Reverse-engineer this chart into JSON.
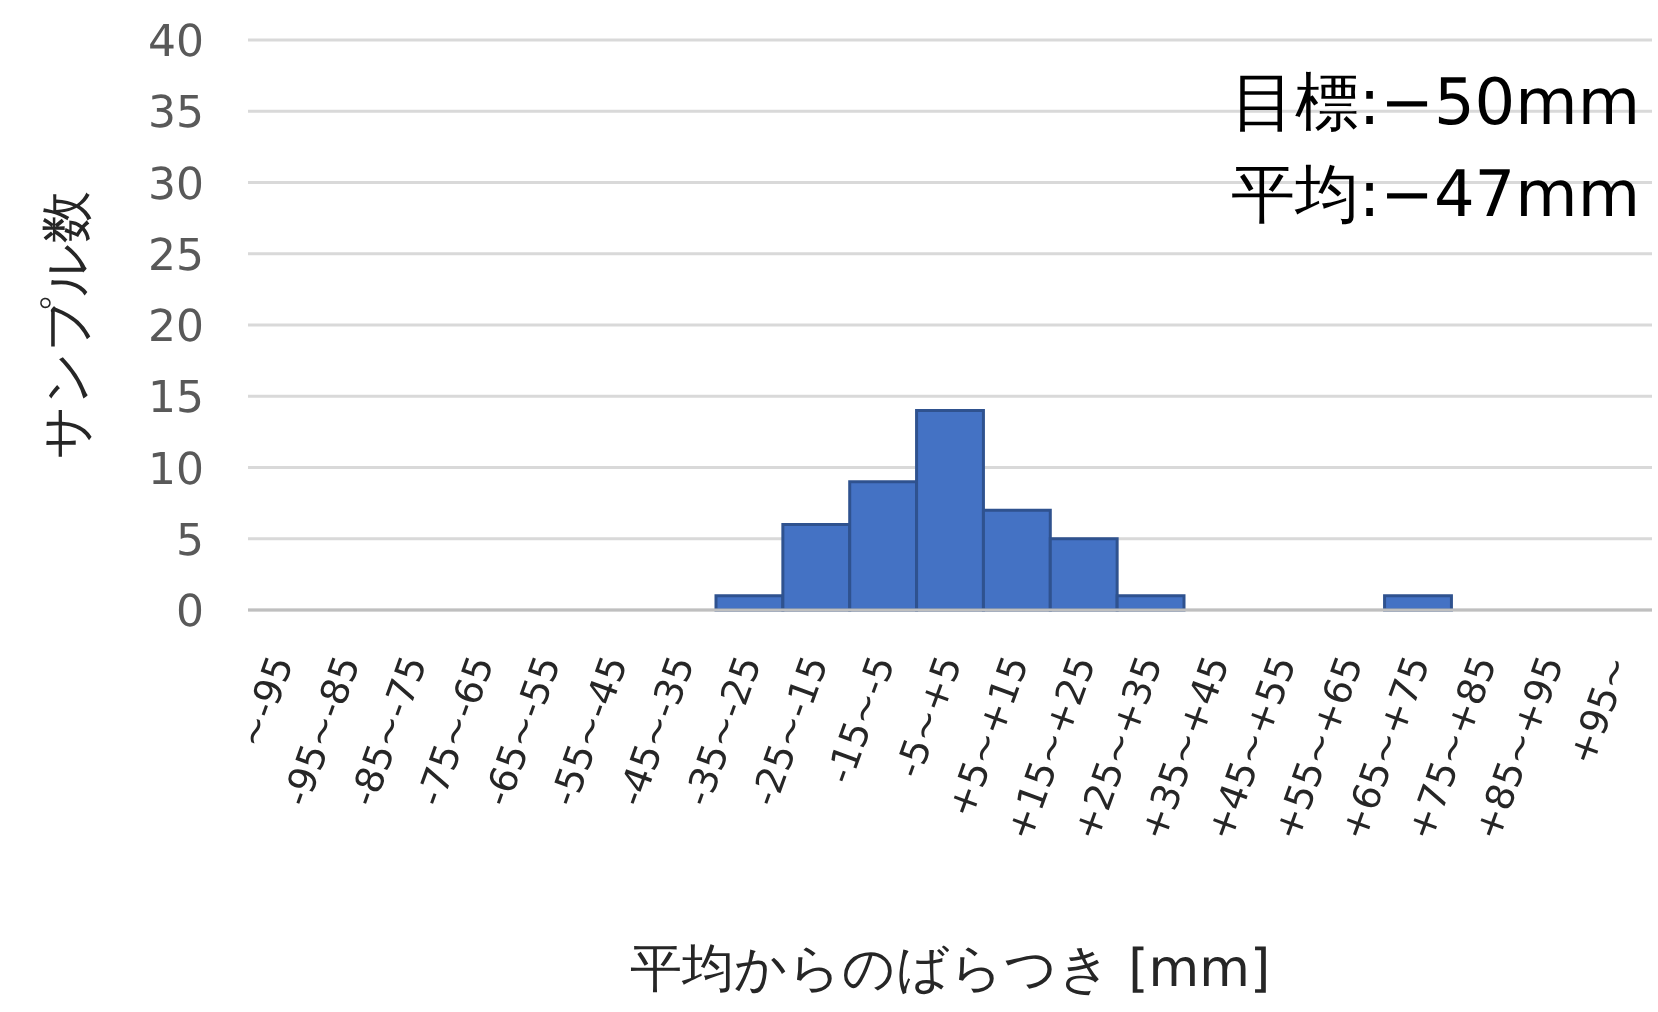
{
  "chart_data": {
    "type": "bar",
    "ylabel": "サンプル数",
    "xlabel": "平均からのばらつき [mm]",
    "categories": [
      "~-95",
      "-95~-85",
      "-85~-75",
      "-75~-65",
      "-65~-55",
      "-55~-45",
      "-45~-35",
      "-35~-25",
      "-25~-15",
      "-15~-5",
      "-5~+5",
      "+5~+15",
      "+15~+25",
      "+25~+35",
      "+35~+45",
      "+45~+55",
      "+55~+65",
      "+65~+75",
      "+75~+85",
      "+85~+95",
      "+95~"
    ],
    "values": [
      0,
      0,
      0,
      0,
      0,
      0,
      0,
      1,
      6,
      9,
      14,
      7,
      5,
      1,
      0,
      0,
      0,
      1,
      0,
      0,
      0
    ],
    "color": "#4472c4",
    "ylim": [
      0,
      40
    ],
    "yticks": [
      0,
      5,
      10,
      15,
      20,
      25,
      30,
      35,
      40
    ],
    "grid": "y",
    "annotations": [
      "目標:−50mm",
      "平均:−47mm"
    ]
  }
}
